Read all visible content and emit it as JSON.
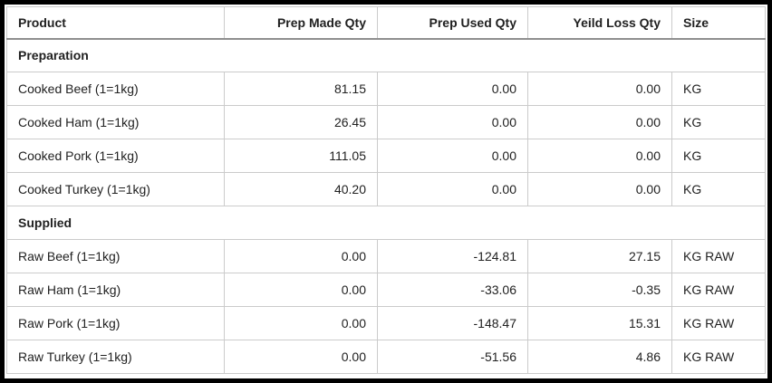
{
  "style": {
    "frame_color": "#000000",
    "cell_border_color": "#cbcbcb",
    "header_underline_color": "#8f8f8f",
    "text_color": "#212121",
    "background_color": "#ffffff"
  },
  "table": {
    "columns": [
      {
        "key": "product",
        "label": "Product",
        "align": "left"
      },
      {
        "key": "prep_made",
        "label": "Prep Made Qty",
        "align": "right"
      },
      {
        "key": "prep_used",
        "label": "Prep Used Qty",
        "align": "right"
      },
      {
        "key": "yeild_loss",
        "label": "Yeild Loss Qty",
        "align": "right"
      },
      {
        "key": "size",
        "label": "Size",
        "align": "left"
      }
    ],
    "sections": [
      {
        "title": "Preparation",
        "rows": [
          {
            "product": "Cooked Beef (1=1kg)",
            "prep_made": "81.15",
            "prep_used": "0.00",
            "yeild_loss": "0.00",
            "size": "KG"
          },
          {
            "product": "Cooked Ham (1=1kg)",
            "prep_made": "26.45",
            "prep_used": "0.00",
            "yeild_loss": "0.00",
            "size": "KG"
          },
          {
            "product": "Cooked Pork (1=1kg)",
            "prep_made": "111.05",
            "prep_used": "0.00",
            "yeild_loss": "0.00",
            "size": "KG"
          },
          {
            "product": "Cooked Turkey (1=1kg)",
            "prep_made": "40.20",
            "prep_used": "0.00",
            "yeild_loss": "0.00",
            "size": "KG"
          }
        ]
      },
      {
        "title": "Supplied",
        "rows": [
          {
            "product": "Raw Beef (1=1kg)",
            "prep_made": "0.00",
            "prep_used": "-124.81",
            "yeild_loss": "27.15",
            "size": "KG RAW"
          },
          {
            "product": "Raw Ham (1=1kg)",
            "prep_made": "0.00",
            "prep_used": "-33.06",
            "yeild_loss": "-0.35",
            "size": "KG RAW"
          },
          {
            "product": "Raw Pork (1=1kg)",
            "prep_made": "0.00",
            "prep_used": "-148.47",
            "yeild_loss": "15.31",
            "size": "KG RAW"
          },
          {
            "product": "Raw Turkey (1=1kg)",
            "prep_made": "0.00",
            "prep_used": "-51.56",
            "yeild_loss": "4.86",
            "size": "KG RAW"
          }
        ]
      }
    ]
  }
}
